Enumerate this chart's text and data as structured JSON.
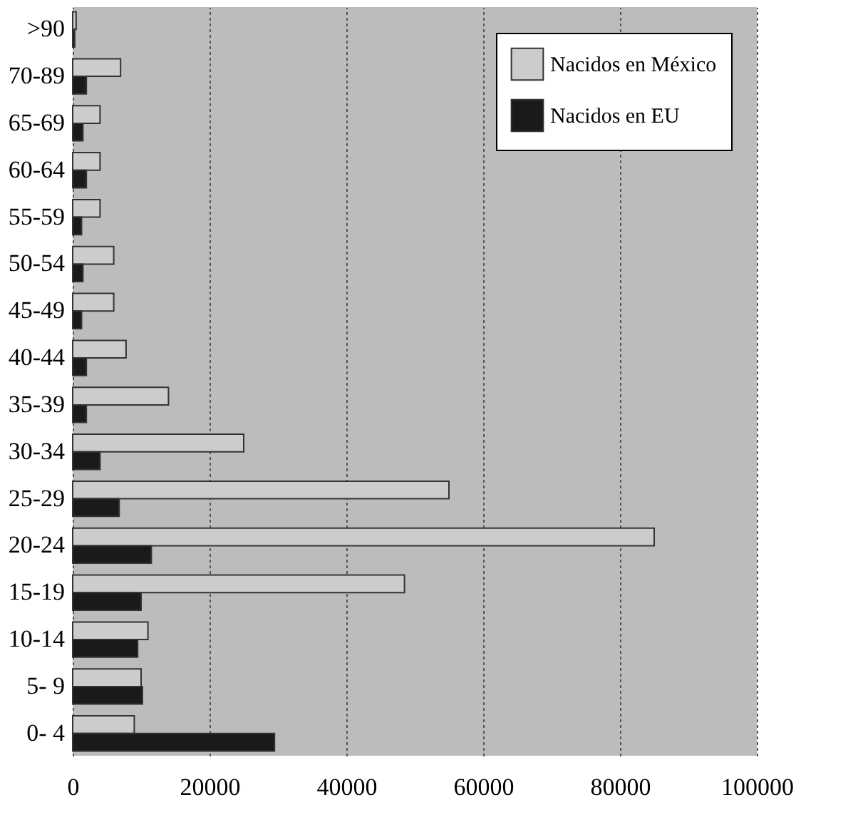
{
  "chart_data": {
    "type": "bar",
    "orientation": "horizontal",
    "categories": [
      ">90",
      "70-89",
      "65-69",
      "60-64",
      "55-59",
      "50-54",
      "45-49",
      "40-44",
      "35-39",
      "30-34",
      "25-29",
      "20-24",
      "15-19",
      "10-14",
      "5- 9",
      "0- 4"
    ],
    "series": [
      {
        "name": "Nacidos en México",
        "color": "#cccccc",
        "values": [
          500,
          7000,
          4000,
          4000,
          4000,
          6000,
          6000,
          7800,
          14000,
          25000,
          55000,
          85000,
          48500,
          11000,
          10000,
          9000
        ]
      },
      {
        "name": "Nacidos en EU",
        "color": "#1a1a1a",
        "values": [
          300,
          2000,
          1500,
          2000,
          1300,
          1500,
          1300,
          2000,
          2000,
          4000,
          6800,
          11500,
          10000,
          9500,
          10200,
          29500
        ]
      }
    ],
    "xlim": [
      0,
      100000
    ],
    "xticks": [
      0,
      20000,
      40000,
      60000,
      80000,
      100000
    ],
    "grid": "x",
    "legend": "top right"
  }
}
